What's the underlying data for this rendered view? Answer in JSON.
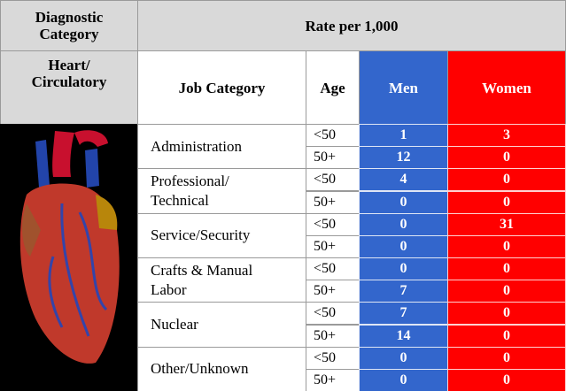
{
  "header": {
    "diagnostic_category": "Diagnostic\nCategory",
    "rate": "Rate per 1,000",
    "category": "Heart/\nCirculatory",
    "job": "Job Category",
    "age": "Age",
    "men": "Men",
    "women": "Women"
  },
  "table": {
    "rows": [
      {
        "job": "Administration",
        "rows": [
          {
            "age": "<50",
            "men": 1,
            "women": 3
          },
          {
            "age": "50+",
            "men": 12,
            "women": 0
          }
        ]
      },
      {
        "job": "Professional/\nTechnical",
        "rows": [
          {
            "age": "<50",
            "men": 4,
            "women": 0
          },
          {
            "age": "50+",
            "men": 0,
            "women": 0
          }
        ]
      },
      {
        "job": "Service/Security",
        "rows": [
          {
            "age": "<50",
            "men": 0,
            "women": 31
          },
          {
            "age": "50+",
            "men": 0,
            "women": 0
          }
        ]
      },
      {
        "job": "Crafts & Manual\nLabor",
        "rows": [
          {
            "age": "<50",
            "men": 0,
            "women": 0
          },
          {
            "age": "50+",
            "men": 7,
            "women": 0
          }
        ]
      },
      {
        "job": "Nuclear",
        "rows": [
          {
            "age": "<50",
            "men": 7,
            "women": 0
          },
          {
            "age": "50+",
            "men": 14,
            "women": 0
          }
        ]
      },
      {
        "job": "Other/Unknown",
        "rows": [
          {
            "age": "<50",
            "men": 0,
            "women": 0
          },
          {
            "age": "50+",
            "men": 0,
            "women": 0
          }
        ]
      }
    ]
  }
}
